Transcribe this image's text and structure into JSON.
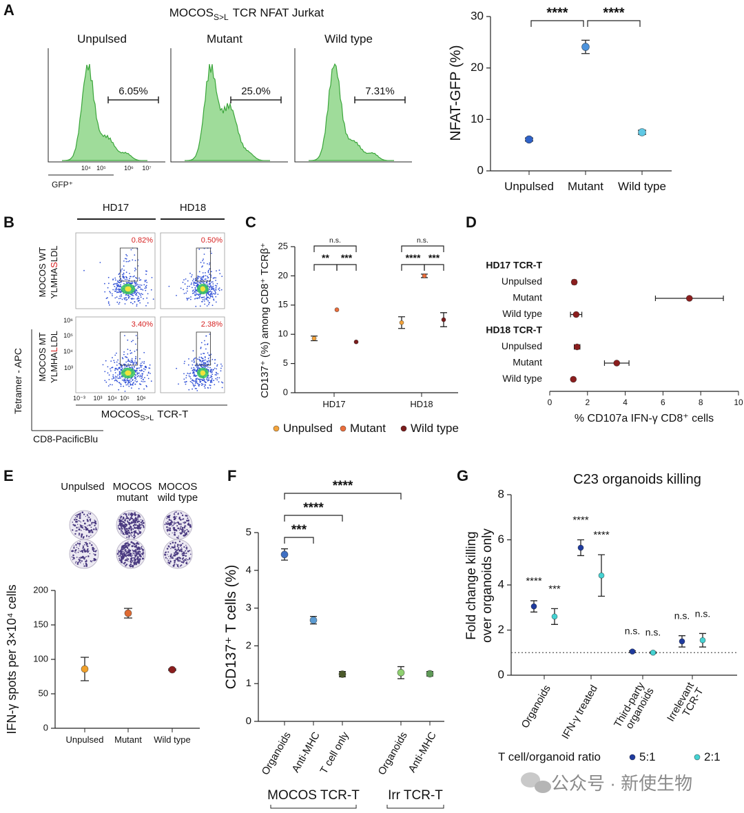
{
  "panel_labels": [
    "A",
    "B",
    "C",
    "D",
    "E",
    "F",
    "G"
  ],
  "flow_a": {
    "title": [
      "MOCOS",
      "S>L",
      "TCR NFAT  Jurkat"
    ],
    "plots": [
      {
        "title": "Unpulsed",
        "gate": "6.05%"
      },
      {
        "title": "Mutant",
        "gate": "25.0%"
      },
      {
        "title": "Wild type",
        "gate": "7.31%"
      }
    ],
    "xticks": [
      "10⁴",
      "10⁵",
      "10⁶",
      "10⁷"
    ],
    "xlabel": "GFP⁺"
  },
  "flow_b": {
    "columns": [
      "HD17",
      "HD18"
    ],
    "rows": [
      {
        "name": "MOCOS WT",
        "sequence": [
          "YLMHA",
          "S",
          "LDL"
        ]
      },
      {
        "name": "MOCOS MT",
        "sequence": [
          "YLMHA",
          "L",
          "LDL"
        ]
      }
    ],
    "gates": [
      [
        "0.82%",
        "0.50%"
      ],
      [
        "3.40%",
        "2.38%"
      ]
    ],
    "yticks": [
      "10⁶",
      "10⁵",
      "10⁴",
      "10³"
    ],
    "xticks": [
      "10⁻³",
      "10³",
      "10⁴",
      "10⁵",
      "10⁶"
    ],
    "ylabel": "Tetramer - APC",
    "xlabel": [
      "MOCOS",
      "S>L",
      "TCR-T"
    ],
    "stain": "CD8-PacificBlu"
  },
  "elispot": {
    "columns": [
      [
        "Unpulsed"
      ],
      [
        "MOCOS",
        "mutant"
      ],
      [
        "MOCOS",
        "wild type"
      ]
    ]
  },
  "chart_data": [
    {
      "type": "dot",
      "ylabel": "NFAT-GFP (%)",
      "categories": [
        "Unpulsed",
        "Mutant",
        "Wild type"
      ],
      "values": [
        6.1,
        24.1,
        7.5
      ],
      "errors": [
        0.3,
        1.3,
        0.4
      ],
      "colors": [
        "#2f62c8",
        "#4d93dc",
        "#5fc8e4"
      ],
      "ylim": [
        0,
        30
      ],
      "yticks": [
        0,
        10,
        20,
        30
      ],
      "comparisons": [
        {
          "between": [
            0,
            1
          ],
          "label": "****"
        },
        {
          "between": [
            1,
            2
          ],
          "label": "****"
        }
      ]
    },
    {
      "type": "grouped-dot",
      "ylabel": "CD137⁺ (%) among CD8⁺ TCRβ⁺",
      "categories": [
        "HD17",
        "HD18"
      ],
      "series": [
        {
          "name": "Unpulsed",
          "color": "#f4a43c",
          "values": [
            9.3,
            12
          ],
          "errors": [
            0.4,
            1.0
          ]
        },
        {
          "name": "Mutant",
          "color": "#ea6e3c",
          "values": [
            14.2,
            20
          ],
          "errors": [
            null,
            0.3
          ]
        },
        {
          "name": "Wild type",
          "color": "#7b1c1c",
          "values": [
            8.7,
            12.5
          ],
          "errors": [
            null,
            1.2
          ]
        }
      ],
      "ylim": [
        0,
        25
      ],
      "yticks": [
        0,
        5,
        10,
        15,
        20,
        25
      ],
      "comparisons": [
        [
          {
            "between": [
              0,
              2
            ],
            "label": "n.s."
          },
          {
            "between": [
              0,
              1
            ],
            "label": "**"
          },
          {
            "between": [
              1,
              2
            ],
            "label": "***"
          }
        ],
        [
          {
            "between": [
              0,
              2
            ],
            "label": "n.s."
          },
          {
            "between": [
              0,
              1
            ],
            "label": "****"
          },
          {
            "between": [
              1,
              2
            ],
            "label": "***"
          }
        ]
      ]
    },
    {
      "type": "horizontal-dot",
      "xlabel": "% CD107a IFN-γ CD8⁺ cells",
      "groups": [
        {
          "name": "HD17 TCR-T",
          "categories": [
            "Unpulsed",
            "Mutant",
            "Wild type"
          ],
          "values": [
            1.3,
            7.4,
            1.4
          ],
          "errors": [
            0.1,
            1.8,
            0.3
          ]
        },
        {
          "name": "HD18 TCR-T",
          "categories": [
            "Unpulsed",
            "Mutant",
            "Wild type"
          ],
          "values": [
            1.45,
            3.55,
            1.25
          ],
          "errors": [
            0.15,
            0.65,
            0.05
          ]
        }
      ],
      "color": "#8b1e1e",
      "xlim": [
        0,
        10
      ],
      "xticks": [
        0,
        2,
        4,
        6,
        8,
        10
      ]
    },
    {
      "type": "dot",
      "ylabel": "IFN-γ spots per 3×10⁴ cells",
      "categories": [
        "Unpulsed",
        "Mutant",
        "Wild type"
      ],
      "values": [
        86,
        167,
        85
      ],
      "errors": [
        17,
        7,
        1
      ],
      "colors": [
        "#f0a02a",
        "#df6a32",
        "#8b1e1e"
      ],
      "ylim": [
        0,
        200
      ],
      "yticks": [
        0,
        50,
        100,
        150,
        200
      ]
    },
    {
      "type": "grouped-category-dot",
      "ylabel": "CD137⁺ T cells (%)",
      "groups": [
        {
          "name": "MOCOS TCR-T",
          "categories": [
            "Organoids",
            "Anti-MHC",
            "T cell only"
          ],
          "values": [
            4.42,
            2.68,
            1.25
          ],
          "errors": [
            0.15,
            0.1,
            0.07
          ],
          "colors": [
            "#3f6fc2",
            "#5b9bd2",
            "#4c5a2c"
          ]
        },
        {
          "name": "Irr TCR-T",
          "categories": [
            "Organoids",
            "Anti-MHC"
          ],
          "values": [
            1.29,
            1.26
          ],
          "errors": [
            0.16,
            0.06
          ],
          "colors": [
            "#8fd070",
            "#5f9a58"
          ]
        }
      ],
      "ylim": [
        0,
        5
      ],
      "yticks": [
        0,
        1,
        2,
        3,
        4,
        5
      ],
      "comparisons": [
        {
          "between": [
            0,
            1
          ],
          "label": "***"
        },
        {
          "between": [
            0,
            2
          ],
          "label": "****"
        },
        {
          "between": [
            0,
            3
          ],
          "label": "****"
        }
      ]
    },
    {
      "type": "grouped-dot",
      "title": "C23 organoids killing",
      "ylabel": [
        "Fold change killing",
        "over organoids only"
      ],
      "categories": [
        [
          "Organoids"
        ],
        [
          "IFN-γ treated"
        ],
        [
          "Third-party",
          "organoids"
        ],
        [
          "Irrelevant",
          "TCR-T"
        ]
      ],
      "series": [
        {
          "name": "5:1",
          "color": "#1f3b9e",
          "values": [
            3.05,
            5.65,
            1.05,
            1.5
          ],
          "errors": [
            0.25,
            0.35,
            0.03,
            0.25
          ],
          "annotations": [
            "****",
            "****",
            "n.s.",
            "n.s."
          ]
        },
        {
          "name": "2:1",
          "color": "#45d2d2",
          "values": [
            2.6,
            4.42,
            1.0,
            1.55
          ],
          "errors": [
            0.35,
            0.92,
            0.03,
            0.3
          ],
          "annotations": [
            "***",
            "****",
            "n.s.",
            "n.s."
          ]
        }
      ],
      "ylim": [
        0,
        8
      ],
      "yticks": [
        0,
        2,
        4,
        6,
        8
      ],
      "reference_line": 1,
      "legend_title": "T cell/organoid ratio"
    }
  ],
  "watermark": "公众号 · 新使生物"
}
